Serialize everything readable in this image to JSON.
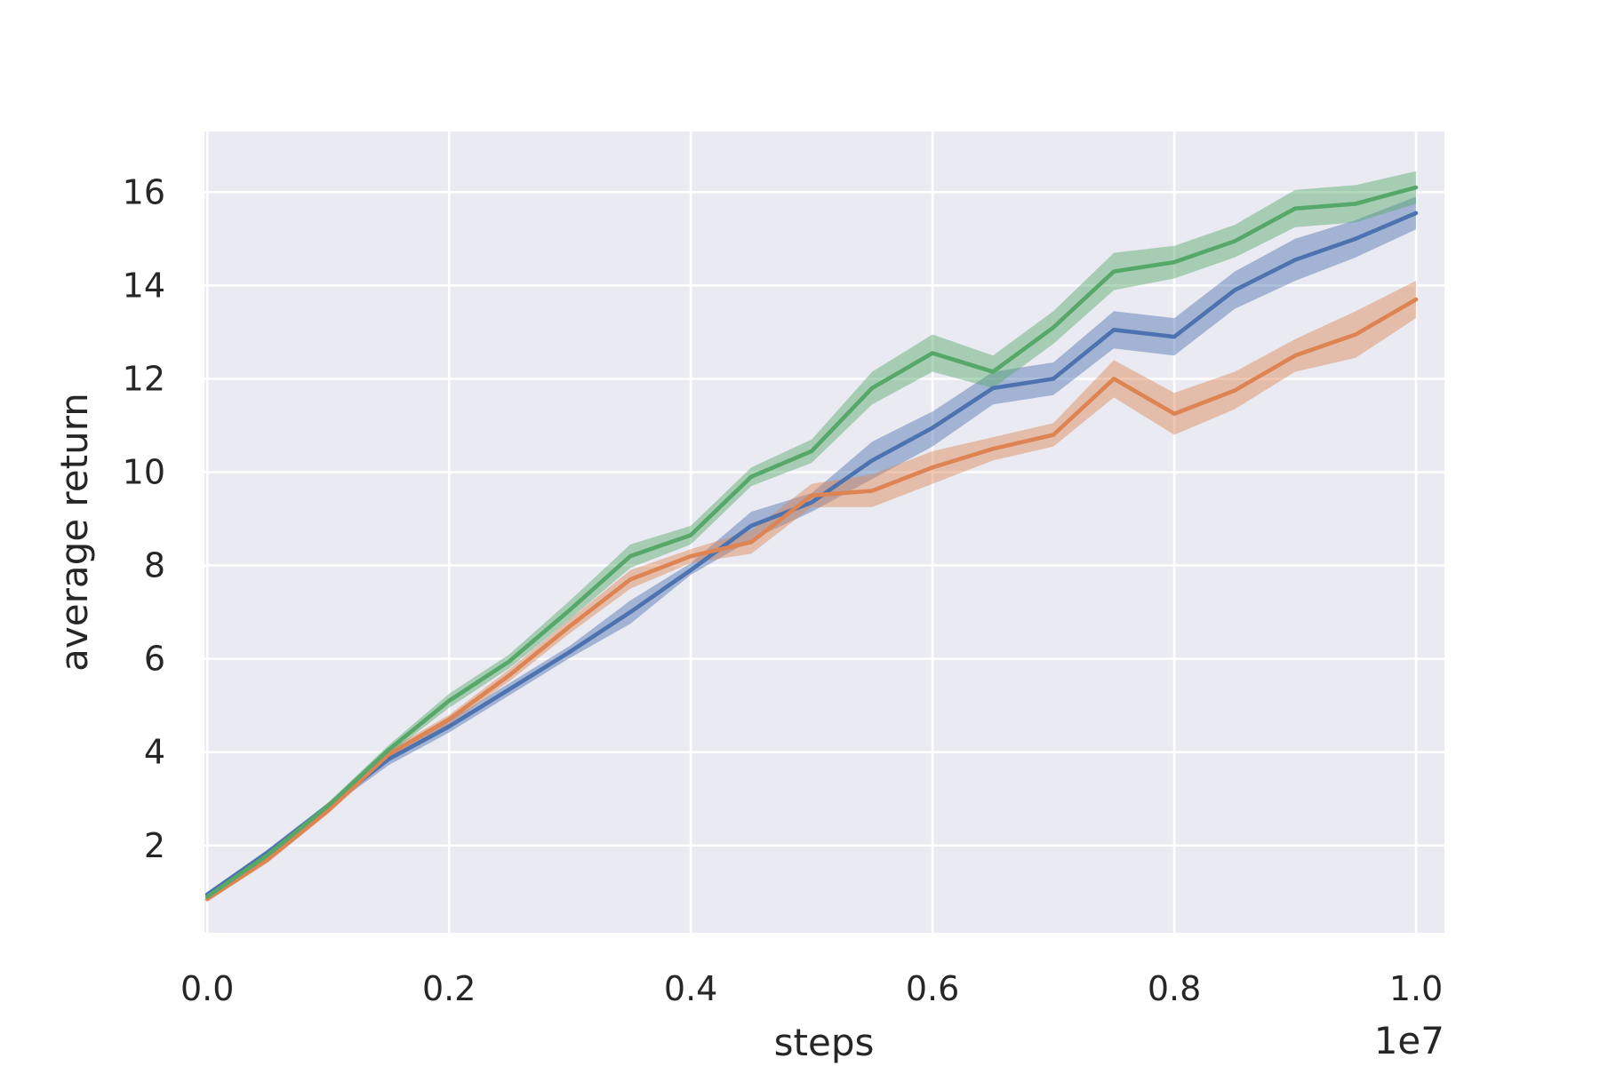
{
  "chart_data": {
    "type": "line",
    "title": "",
    "xlabel": "steps",
    "ylabel": "average return",
    "x_offset_label": "1e7",
    "xlim": [
      -0.00235,
      1.0235
    ],
    "ylim": [
      0.13,
      17.3
    ],
    "x_ticks": [
      0.0,
      0.2,
      0.4,
      0.6,
      0.8,
      1.0
    ],
    "x_tick_labels": [
      "0.0",
      "0.2",
      "0.4",
      "0.6",
      "0.8",
      "1.0"
    ],
    "y_ticks": [
      2,
      4,
      6,
      8,
      10,
      12,
      14,
      16
    ],
    "y_tick_labels": [
      "2",
      "4",
      "6",
      "8",
      "10",
      "12",
      "14",
      "16"
    ],
    "grid": true,
    "legend": "none",
    "background": "#EAEAF2",
    "x": [
      0.0,
      0.05,
      0.1,
      0.15,
      0.2,
      0.25,
      0.3,
      0.35,
      0.4,
      0.45,
      0.5,
      0.55,
      0.6,
      0.65,
      0.7,
      0.75,
      0.8,
      0.85,
      0.9,
      0.95,
      1.0
    ],
    "series": [
      {
        "color": "#4C72B0",
        "values": [
          0.95,
          1.85,
          2.85,
          3.85,
          4.55,
          5.35,
          6.15,
          7.0,
          7.9,
          8.85,
          9.35,
          10.25,
          10.95,
          11.8,
          12.0,
          13.05,
          12.9,
          13.9,
          14.55,
          15.0,
          15.55
        ],
        "lower": [
          0.9,
          1.78,
          2.78,
          3.72,
          4.42,
          5.22,
          6.02,
          6.75,
          7.8,
          8.55,
          9.15,
          9.85,
          10.55,
          11.45,
          11.65,
          12.65,
          12.5,
          13.5,
          14.1,
          14.6,
          15.2
        ],
        "upper": [
          1.0,
          1.92,
          2.92,
          3.98,
          4.68,
          5.48,
          6.28,
          7.25,
          8.05,
          9.15,
          9.55,
          10.65,
          11.3,
          12.15,
          12.35,
          13.45,
          13.3,
          14.3,
          15.0,
          15.4,
          15.9
        ]
      },
      {
        "color": "#DD8452",
        "values": [
          0.85,
          1.7,
          2.75,
          3.95,
          4.7,
          5.65,
          6.7,
          7.7,
          8.2,
          8.5,
          9.5,
          9.6,
          10.1,
          10.5,
          10.8,
          12.0,
          11.25,
          11.75,
          12.5,
          12.95,
          13.7
        ],
        "lower": [
          0.8,
          1.63,
          2.68,
          3.85,
          4.6,
          5.52,
          6.55,
          7.5,
          8.05,
          8.25,
          9.25,
          9.25,
          9.75,
          10.25,
          10.55,
          11.6,
          10.8,
          11.35,
          12.15,
          12.45,
          13.3
        ],
        "upper": [
          0.9,
          1.77,
          2.82,
          4.05,
          4.8,
          5.78,
          6.85,
          7.9,
          8.35,
          8.75,
          9.75,
          9.95,
          10.45,
          10.75,
          11.05,
          12.4,
          11.7,
          12.15,
          12.85,
          13.45,
          14.1
        ]
      },
      {
        "color": "#55A868",
        "values": [
          0.9,
          1.8,
          2.85,
          4.05,
          5.1,
          5.95,
          7.05,
          8.2,
          8.65,
          9.9,
          10.45,
          11.8,
          12.55,
          12.15,
          13.1,
          14.3,
          14.5,
          14.95,
          15.65,
          15.75,
          16.1
        ],
        "lower": [
          0.85,
          1.73,
          2.78,
          3.95,
          4.95,
          5.8,
          6.85,
          7.95,
          8.45,
          9.7,
          10.2,
          11.45,
          12.15,
          11.8,
          12.75,
          13.9,
          14.15,
          14.6,
          15.25,
          15.35,
          15.75
        ],
        "upper": [
          0.95,
          1.87,
          2.92,
          4.15,
          5.25,
          6.1,
          7.25,
          8.45,
          8.85,
          10.1,
          10.7,
          12.15,
          12.95,
          12.5,
          13.45,
          14.7,
          14.85,
          15.3,
          16.05,
          16.15,
          16.45
        ]
      }
    ]
  }
}
